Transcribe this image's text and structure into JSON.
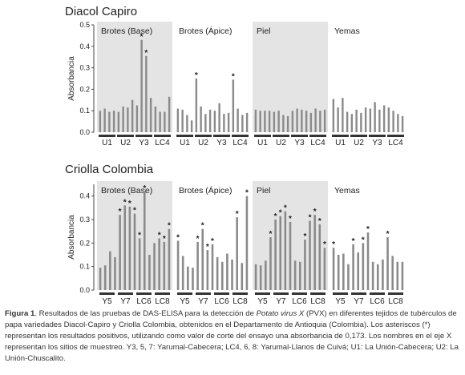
{
  "colors": {
    "bar": "#8a8a8a",
    "shade": "#e4e4e4",
    "axis": "#444444",
    "text": "#222222"
  },
  "chart_data": [
    {
      "type": "bar",
      "title": "Diacol Capiro",
      "ylabel": "Absorbancia",
      "ylim": [
        0,
        0.5
      ],
      "yticks": [
        "0.0",
        "0.1",
        "0.2",
        "0.3",
        "0.4",
        "0.5"
      ],
      "shaded_panels": [
        0,
        2
      ],
      "panels": [
        {
          "label": "Brotes (Base)",
          "groups": [
            "U1",
            "U2",
            "Y3",
            "LC4"
          ],
          "values": [
            0.1,
            0.11,
            0.095,
            0.1,
            0.095,
            0.12,
            0.115,
            0.15,
            0.125,
            0.43,
            0.355,
            0.16,
            0.12,
            0.095,
            0.095,
            0.165
          ],
          "positive": [
            9,
            10
          ]
        },
        {
          "label": "Brotes (Ápice)",
          "groups": [
            "U1",
            "U2",
            "Y3",
            "LC4"
          ],
          "values": [
            0.11,
            0.105,
            0.08,
            0.055,
            0.25,
            0.12,
            0.085,
            0.105,
            0.1,
            0.135,
            0.085,
            0.09,
            0.245,
            0.11,
            0.08,
            0.09
          ],
          "positive": [
            4,
            12
          ]
        },
        {
          "label": "Piel",
          "groups": [
            "U1",
            "U2",
            "Y3",
            "LC4"
          ],
          "values": [
            0.105,
            0.1,
            0.1,
            0.1,
            0.095,
            0.1,
            0.08,
            0.075,
            0.1,
            0.11,
            0.105,
            0.1,
            0.09,
            0.11,
            0.1,
            0.105
          ],
          "positive": []
        },
        {
          "label": "Yemas",
          "groups": [
            "U1",
            "U2",
            "Y3",
            "LC4"
          ],
          "values": [
            0.155,
            0.115,
            0.16,
            0.095,
            0.085,
            0.105,
            0.09,
            0.115,
            0.11,
            0.14,
            0.105,
            0.125,
            0.115,
            0.1,
            0.085,
            0.075
          ],
          "positive": []
        }
      ]
    },
    {
      "type": "bar",
      "title": "Criolla Colombia",
      "ylabel": "Absorbancia",
      "ylim": [
        0,
        0.45
      ],
      "yticks": [
        "0.0",
        "0.1",
        "0.2",
        "0.3",
        "0.4"
      ],
      "shaded_panels": [
        0,
        2
      ],
      "panels": [
        {
          "label": "Brotes (Base)",
          "groups": [
            "Y5",
            "Y7",
            "LC6",
            "LC8"
          ],
          "values": [
            0.095,
            0.105,
            0.165,
            0.14,
            0.32,
            0.36,
            0.355,
            0.325,
            0.22,
            0.42,
            0.15,
            0.2,
            0.22,
            0.205,
            0.26
          ],
          "positive": [
            4,
            5,
            6,
            7,
            8,
            9,
            12,
            13,
            14
          ]
        },
        {
          "label": "Brotes (Ápice)",
          "groups": [
            "Y5",
            "Y7",
            "LC6",
            "LC8"
          ],
          "values": [
            0.21,
            0.145,
            0.1,
            0.095,
            0.205,
            0.26,
            0.17,
            0.195,
            0.14,
            0.12,
            0.155,
            0.13,
            0.31,
            0.115,
            0.4
          ],
          "positive": [
            0,
            4,
            5,
            6,
            7,
            12,
            14
          ]
        },
        {
          "label": "Piel",
          "groups": [
            "Y5",
            "Y7",
            "LC6",
            "LC8"
          ],
          "values": [
            0.11,
            0.105,
            0.125,
            0.225,
            0.3,
            0.315,
            0.335,
            0.29,
            0.125,
            0.12,
            0.215,
            0.295,
            0.32,
            0.28,
            0.18
          ],
          "positive": [
            3,
            4,
            5,
            6,
            7,
            10,
            11,
            12,
            13,
            14
          ]
        },
        {
          "label": "Yemas",
          "groups": [
            "Y5",
            "Y7",
            "LC6",
            "LC8"
          ],
          "values": [
            0.18,
            0.15,
            0.155,
            0.11,
            0.195,
            0.16,
            0.2,
            0.245,
            0.12,
            0.11,
            0.13,
            0.225,
            0.145,
            0.12,
            0.12
          ],
          "positive": [
            0,
            4,
            6,
            7,
            11
          ]
        }
      ]
    }
  ],
  "caption": {
    "label": "Figura 1",
    "text_before": ". Resultados de las pruebas de DAS-ELISA para la detección de ",
    "italic": "Potato virus X",
    "text_after": " (PVX) en diferentes tejidos de tubérculos de papa variedades Diacol-Capiro y Criolla Colombia, obtenidos en el Departamento de Antioquia (Colombia). Los asteriscos (*) representan los resultados positivos, utilizando como valor de corte del ensayo una absorbancia de 0,173. Los nombres en el eje X representan los sitios de muestreo. Y3, 5, 7: Yarumal-Cabecera; LC4, 6, 8: Yarumal-Llanos de Cuivá; U1: La Unión-Cabecera; U2: La Unión-Chuscalito."
  }
}
